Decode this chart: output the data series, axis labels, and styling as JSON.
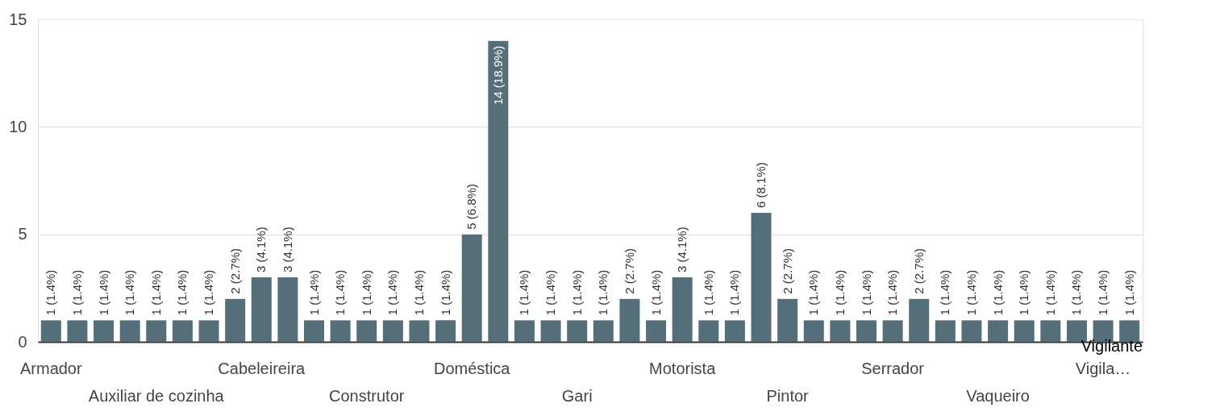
{
  "chart_data": {
    "type": "bar",
    "categories": [
      "Armador",
      null,
      null,
      null,
      "Auxiliar de cozinha",
      null,
      null,
      null,
      "Cabeleireira",
      null,
      null,
      null,
      "Construtor",
      null,
      null,
      null,
      "Doméstica",
      null,
      null,
      null,
      "Gari",
      null,
      null,
      null,
      "Motorista",
      null,
      null,
      null,
      "Pintor",
      null,
      null,
      null,
      "Serrador",
      null,
      null,
      null,
      "Vaqueiro",
      null,
      null,
      null,
      "Vigila…",
      null
    ],
    "values": [
      1,
      1,
      1,
      1,
      1,
      1,
      1,
      2,
      3,
      3,
      1,
      1,
      1,
      1,
      1,
      1,
      5,
      14,
      1,
      1,
      1,
      1,
      2,
      1,
      3,
      1,
      1,
      6,
      2,
      1,
      1,
      1,
      1,
      2,
      1,
      1,
      1,
      1,
      1,
      1,
      1,
      1
    ],
    "value_labels": [
      "1 (1.4%)",
      "1 (1.4%)",
      "1 (1.4%)",
      "1 (1.4%)",
      "1 (1.4%)",
      "1 (1.4%)",
      "1 (1.4%)",
      "2 (2.7%)",
      "3 (4.1%)",
      "3 (4.1%)",
      "1 (1.4%)",
      "1 (1.4%)",
      "1 (1.4%)",
      "1 (1.4%)",
      "1 (1.4%)",
      "1 (1.4%)",
      "5 (6.8%)",
      "14 (18.9%)",
      "1 (1.4%)",
      "1 (1.4%)",
      "1 (1.4%)",
      "1 (1.4%)",
      "2 (2.7%)",
      "1 (1.4%)",
      "3 (4.1%)",
      "1 (1.4%)",
      "1 (1.4%)",
      "6 (8.1%)",
      "2 (2.7%)",
      "1 (1.4%)",
      "1 (1.4%)",
      "1 (1.4%)",
      "1 (1.4%)",
      "2 (2.7%)",
      "1 (1.4%)",
      "1 (1.4%)",
      "1 (1.4%)",
      "1 (1.4%)",
      "1 (1.4%)",
      "1 (1.4%)",
      "1 (1.4%)",
      "1 (1.4%)"
    ],
    "color": "#546e7a",
    "ylim": [
      0,
      15
    ],
    "yticks": [
      0,
      5,
      10,
      15
    ],
    "grid": "y",
    "annotations": [
      "Vigilante"
    ]
  }
}
